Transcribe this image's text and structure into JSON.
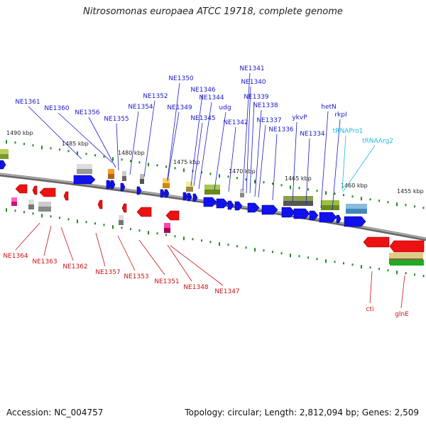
{
  "title": "Nitrosomonas europaea ATCC 19718, complete genome",
  "footer": {
    "accession": "Accession: NC_004757",
    "summary": "Topology: circular; Length: 2,812,094 bp; Genes: 2,509"
  },
  "colors": {
    "forward_label": "#1a1acc",
    "reverse_label": "#cc1111",
    "rna_label": "#22bbdd",
    "forward_gene": "#1111ee",
    "reverse_gene": "#ee1111",
    "backbone": "#888888",
    "tick": "#228822"
  },
  "scale_labels": [
    "1490 kbp",
    "1485 kbp",
    "1480 kbp",
    "1475 kbp",
    "1470 kbp",
    "1465 kbp",
    "1460 kbp",
    "1455 kbp"
  ],
  "forward_labels": [
    "NE1361",
    "NE1360",
    "NE1356",
    "NE1355",
    "NE1354",
    "NE1352",
    "NE1350",
    "NE1349",
    "NE1346",
    "NE1345",
    "NE1344",
    "udg",
    "NE1342",
    "NE1341",
    "NE1340",
    "NE1339",
    "NE1338",
    "NE1337",
    "NE1336",
    "ykvP",
    "NE1334",
    "hetN",
    "rkpI"
  ],
  "rna_labels": [
    "tRNAPro1",
    "tRNAArg2"
  ],
  "reverse_labels": [
    "NE1364",
    "NE1363",
    "NE1362",
    "NE1357",
    "NE1353",
    "NE1351",
    "NE1348",
    "NE1347",
    "cti",
    "glnE"
  ]
}
